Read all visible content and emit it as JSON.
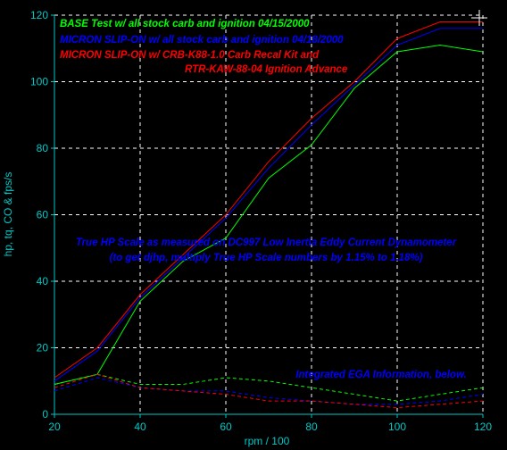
{
  "chart_data": {
    "type": "line",
    "xlabel": "rpm / 100",
    "ylabel": "hp, tq, CO & fps/s",
    "xlim": [
      20,
      120
    ],
    "ylim": [
      0,
      120
    ],
    "xticks": [
      20,
      40,
      60,
      80,
      100,
      120
    ],
    "yticks": [
      0,
      20,
      40,
      60,
      80,
      100,
      120
    ],
    "grid": true,
    "legend_position": "top-left",
    "series": [
      {
        "name": "BASE Test w/ all stock carb and ignition 04/15/2000",
        "color": "#00ff00",
        "x": [
          20,
          30,
          40,
          50,
          60,
          70,
          80,
          90,
          100,
          110,
          120
        ],
        "y": [
          9,
          12,
          34,
          46,
          53,
          71,
          81,
          98,
          109,
          111,
          109
        ]
      },
      {
        "name": "MICRON SLIP-ON w/ all stock carb and ignition 04/18/2000",
        "color": "#0000ff",
        "x": [
          20,
          30,
          40,
          50,
          60,
          70,
          80,
          90,
          100,
          110,
          120
        ],
        "y": [
          10,
          19,
          35,
          47,
          59,
          74,
          87,
          99,
          111,
          116,
          116
        ]
      },
      {
        "name": "MICRON SLIP-ON w/ CRB-K88-1.0 Carb Recal Kit and",
        "name_line2": "RTR-KAW-88-04 Ignition Advance",
        "color": "#ff0000",
        "x": [
          20,
          30,
          40,
          50,
          60,
          70,
          80,
          90,
          100,
          110,
          120
        ],
        "y": [
          11,
          20,
          36,
          48,
          60,
          76,
          89,
          100,
          113,
          118,
          118
        ]
      }
    ],
    "ega_series": [
      {
        "color": "#00ff00",
        "x": [
          20,
          30,
          40,
          50,
          60,
          70,
          80,
          90,
          100,
          110,
          120
        ],
        "y": [
          9,
          12,
          9,
          9,
          11,
          10,
          8,
          6,
          4,
          6,
          8
        ]
      },
      {
        "color": "#0000ff",
        "x": [
          20,
          30,
          40,
          50,
          60,
          70,
          80,
          90,
          100,
          110,
          120
        ],
        "y": [
          7,
          11,
          8,
          7,
          7,
          5,
          4,
          3,
          3,
          4,
          6
        ]
      },
      {
        "color": "#ff0000",
        "x": [
          20,
          30,
          40,
          50,
          60,
          70,
          80,
          90,
          100,
          110,
          120
        ],
        "y": [
          8,
          12,
          8,
          7,
          6,
          4,
          4,
          3,
          2,
          3,
          4
        ]
      }
    ],
    "annotations": [
      "True HP Scale as measured on DC997 Low Inertia Eddy Current Dynamometer",
      "(to get djhp, multiply True HP Scale numbers by 1.15% to 1.18%)",
      "Integrated EGA Information, below."
    ]
  }
}
